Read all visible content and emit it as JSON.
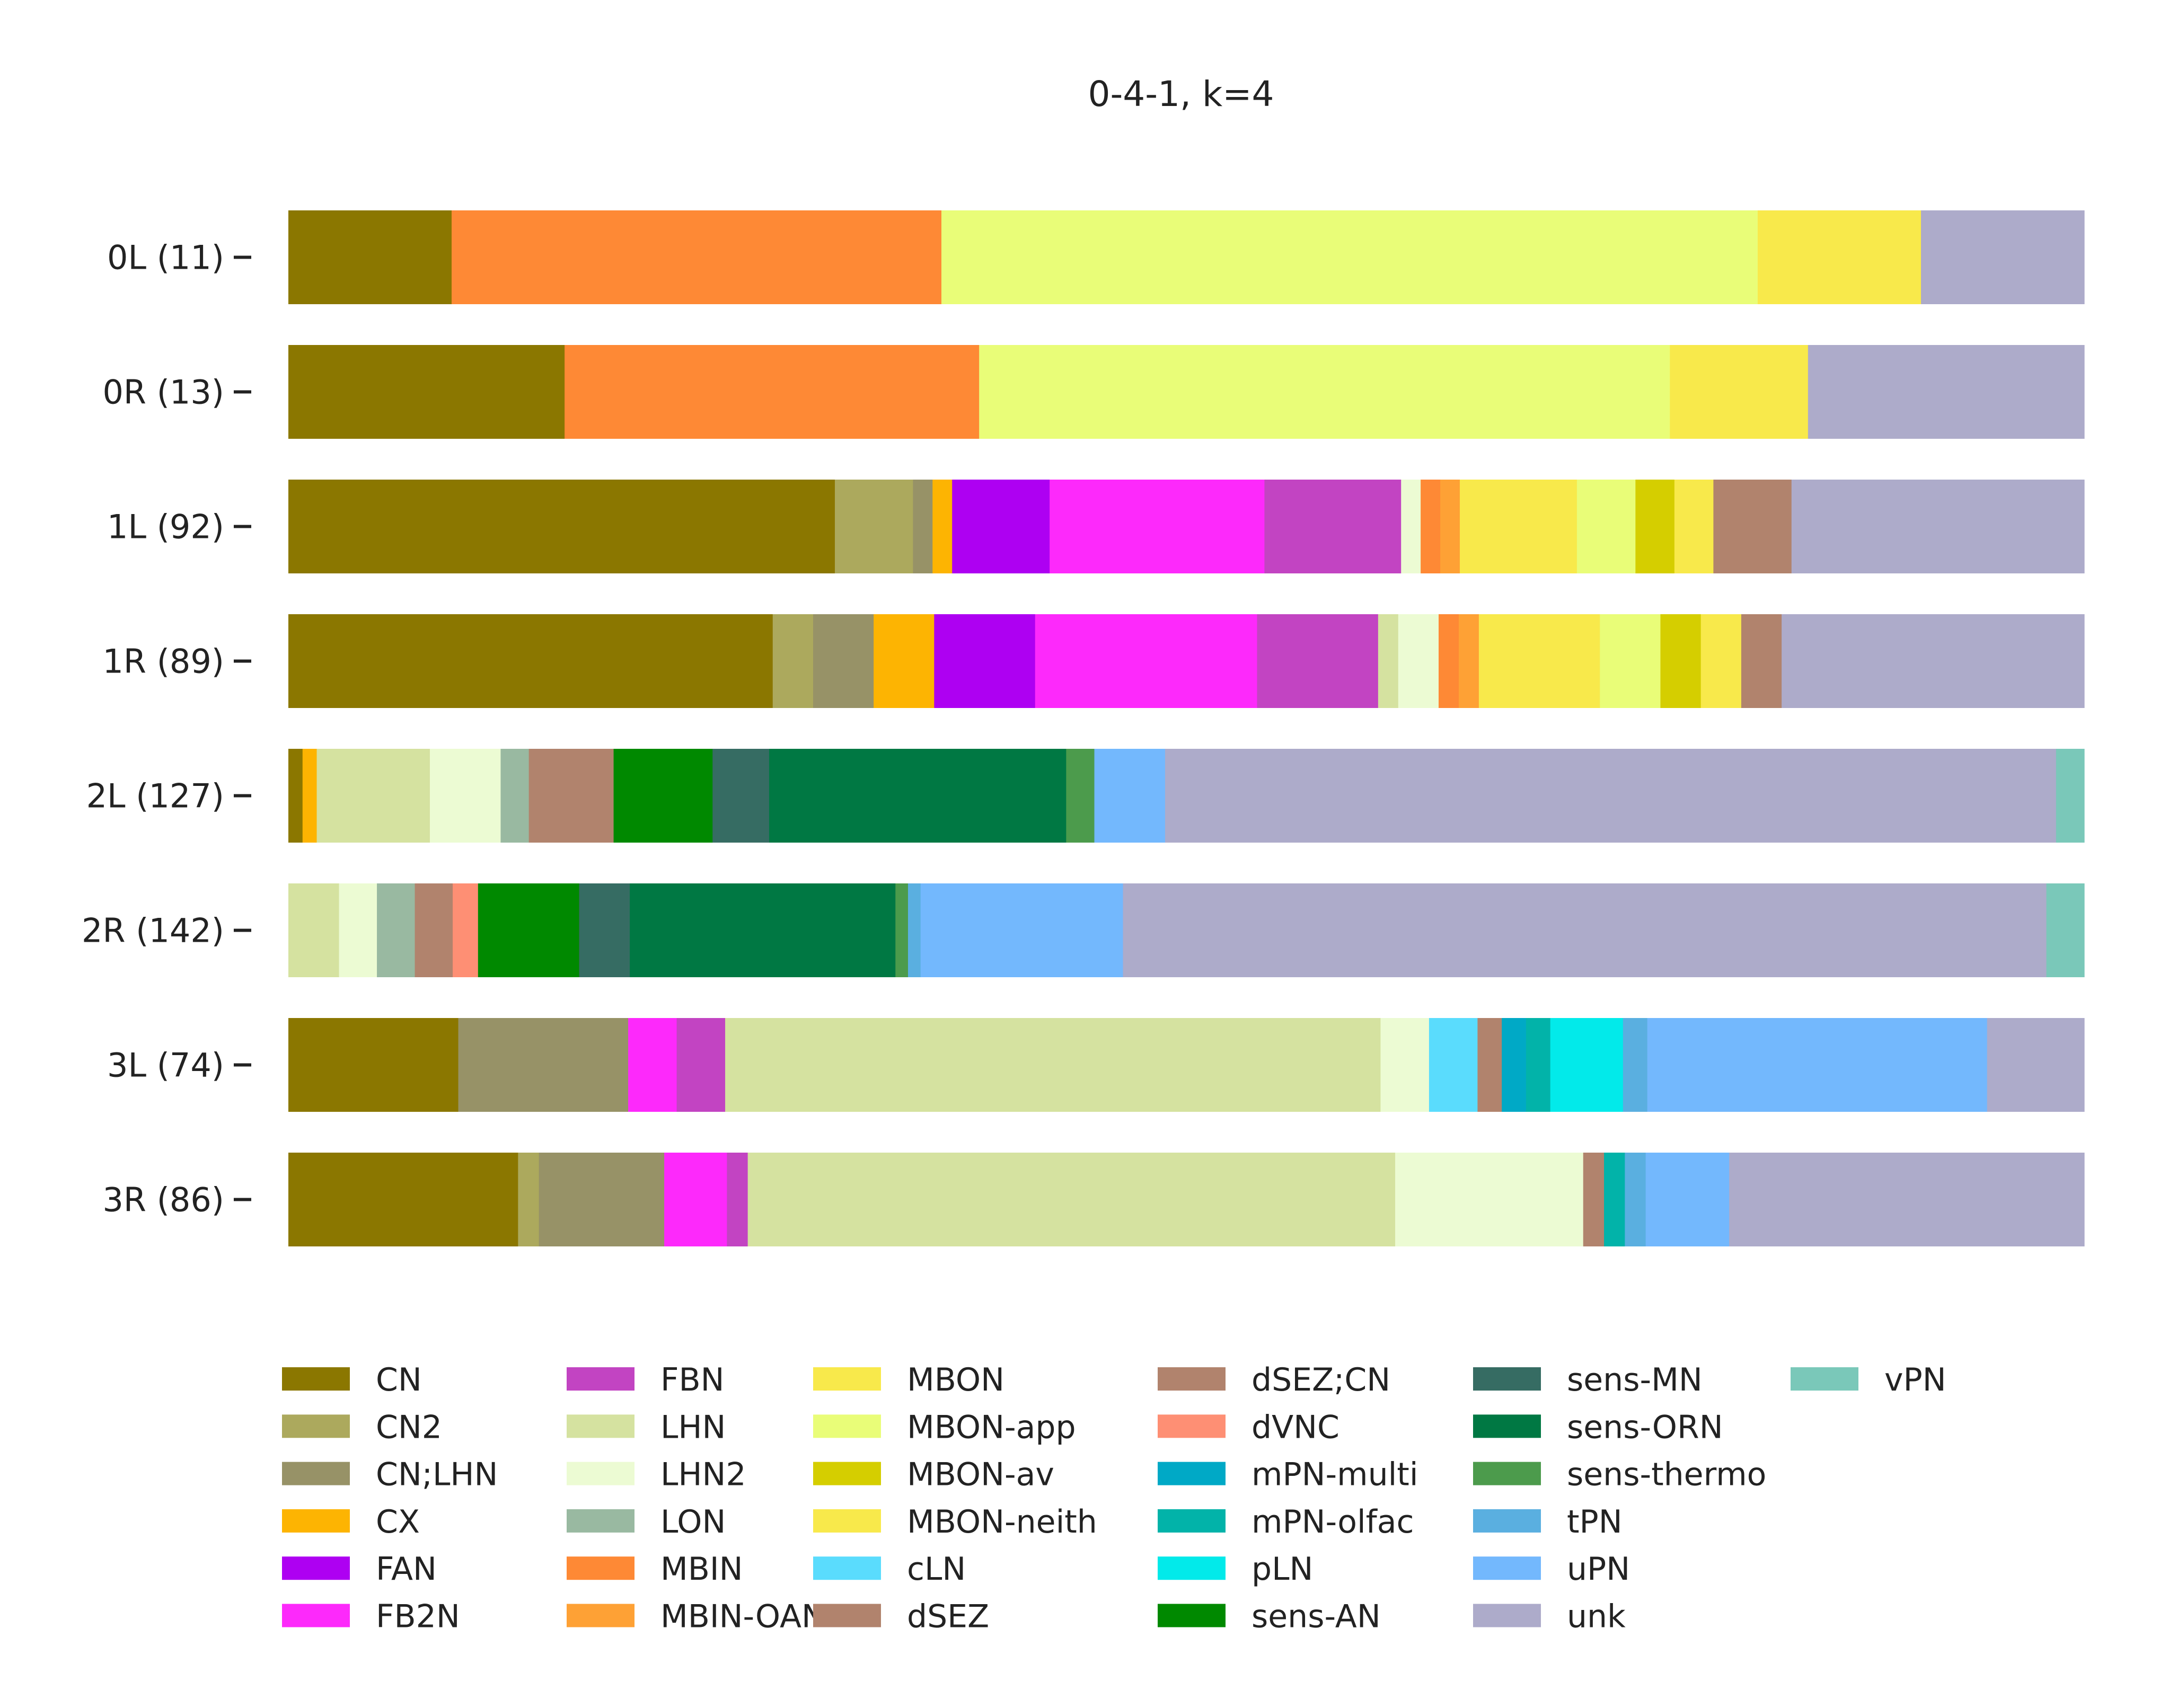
{
  "chart_data": {
    "type": "bar",
    "stacked": true,
    "orientation": "horizontal",
    "normalized": true,
    "title": "0-4-1, k=4",
    "xlim": [
      0,
      1
    ],
    "grid": false,
    "legend_position": "bottom",
    "categories": [
      "0L (11)",
      "0R (13)",
      "1L (92)",
      "1R (89)",
      "2L (127)",
      "2R (142)",
      "3L (74)",
      "3R (86)"
    ],
    "legend": [
      {
        "name": "CN",
        "color": "#8b7700"
      },
      {
        "name": "CN2",
        "color": "#aca95d"
      },
      {
        "name": "CN;LHN",
        "color": "#979267"
      },
      {
        "name": "CX",
        "color": "#fdb402"
      },
      {
        "name": "FAN",
        "color": "#ae00f2"
      },
      {
        "name": "FB2N",
        "color": "#fd29fb"
      },
      {
        "name": "FBN",
        "color": "#c244c2"
      },
      {
        "name": "LHN",
        "color": "#d5e2a0"
      },
      {
        "name": "LHN2",
        "color": "#ecfbd3"
      },
      {
        "name": "LON",
        "color": "#99b9a1"
      },
      {
        "name": "MBIN",
        "color": "#fe8935"
      },
      {
        "name": "MBIN-OAN",
        "color": "#fea135"
      },
      {
        "name": "MBON",
        "color": "#f8e94b"
      },
      {
        "name": "MBON-app",
        "color": "#e9fd78"
      },
      {
        "name": "MBON-av",
        "color": "#d5ce00"
      },
      {
        "name": "MBON-neith",
        "color": "#f8e94b"
      },
      {
        "name": "cLN",
        "color": "#5adcfd"
      },
      {
        "name": "dSEZ",
        "color": "#b1836d"
      },
      {
        "name": "dSEZ;CN",
        "color": "#b1836d"
      },
      {
        "name": "dVNC",
        "color": "#fe8f74"
      },
      {
        "name": "mPN-multi",
        "color": "#00a9c6"
      },
      {
        "name": "mPN-olfac",
        "color": "#02b3a9"
      },
      {
        "name": "pLN",
        "color": "#02eaea"
      },
      {
        "name": "sens-AN",
        "color": "#008900"
      },
      {
        "name": "sens-MN",
        "color": "#366c63"
      },
      {
        "name": "sens-ORN",
        "color": "#007843"
      },
      {
        "name": "sens-thermo",
        "color": "#4c9b4c"
      },
      {
        "name": "tPN",
        "color": "#5aafe0"
      },
      {
        "name": "uPN",
        "color": "#73b8fd"
      },
      {
        "name": "unk",
        "color": "#adabca"
      },
      {
        "name": "vPN",
        "color": "#7ac8b9"
      }
    ],
    "bars": [
      {
        "label": "0L (11)",
        "segments": [
          {
            "type": "CN",
            "value": 0.0909
          },
          {
            "type": "MBIN",
            "value": 0.2727
          },
          {
            "type": "MBON-app",
            "value": 0.4545
          },
          {
            "type": "MBON-neith",
            "value": 0.0909
          },
          {
            "type": "unk",
            "value": 0.0909
          }
        ]
      },
      {
        "label": "0R (13)",
        "segments": [
          {
            "type": "CN",
            "value": 0.1538
          },
          {
            "type": "MBIN",
            "value": 0.2308
          },
          {
            "type": "MBON-app",
            "value": 0.3846
          },
          {
            "type": "MBON-neith",
            "value": 0.0769
          },
          {
            "type": "unk",
            "value": 0.1538
          }
        ]
      },
      {
        "label": "1L (92)",
        "segments": [
          {
            "type": "CN",
            "value": 0.3043
          },
          {
            "type": "CN2",
            "value": 0.0435
          },
          {
            "type": "CN;LHN",
            "value": 0.0109
          },
          {
            "type": "CX",
            "value": 0.0109
          },
          {
            "type": "FAN",
            "value": 0.0543
          },
          {
            "type": "FB2N",
            "value": 0.1196
          },
          {
            "type": "FBN",
            "value": 0.0761
          },
          {
            "type": "LHN2",
            "value": 0.0109
          },
          {
            "type": "MBIN",
            "value": 0.0109
          },
          {
            "type": "MBIN-OAN",
            "value": 0.0109
          },
          {
            "type": "MBON",
            "value": 0.0652
          },
          {
            "type": "MBON-app",
            "value": 0.0326
          },
          {
            "type": "MBON-av",
            "value": 0.0217
          },
          {
            "type": "MBON-neith",
            "value": 0.0217
          },
          {
            "type": "dSEZ",
            "value": 0.0435
          },
          {
            "type": "unk",
            "value": 0.163
          }
        ]
      },
      {
        "label": "1R (89)",
        "segments": [
          {
            "type": "CN",
            "value": 0.2697
          },
          {
            "type": "CN2",
            "value": 0.0225
          },
          {
            "type": "CN;LHN",
            "value": 0.0337
          },
          {
            "type": "CX",
            "value": 0.0337
          },
          {
            "type": "FAN",
            "value": 0.0562
          },
          {
            "type": "FB2N",
            "value": 0.1236
          },
          {
            "type": "FBN",
            "value": 0.0674
          },
          {
            "type": "LHN",
            "value": 0.0112
          },
          {
            "type": "LHN2",
            "value": 0.0225
          },
          {
            "type": "MBIN",
            "value": 0.0112
          },
          {
            "type": "MBIN-OAN",
            "value": 0.0112
          },
          {
            "type": "MBON",
            "value": 0.0674
          },
          {
            "type": "MBON-app",
            "value": 0.0337
          },
          {
            "type": "MBON-av",
            "value": 0.0225
          },
          {
            "type": "MBON-neith",
            "value": 0.0225
          },
          {
            "type": "dSEZ",
            "value": 0.0225
          },
          {
            "type": "unk",
            "value": 0.1685
          }
        ]
      },
      {
        "label": "2L (127)",
        "segments": [
          {
            "type": "CN",
            "value": 0.0079
          },
          {
            "type": "CX",
            "value": 0.0079
          },
          {
            "type": "LHN",
            "value": 0.063
          },
          {
            "type": "LHN2",
            "value": 0.0394
          },
          {
            "type": "LON",
            "value": 0.0157
          },
          {
            "type": "dSEZ",
            "value": 0.0472
          },
          {
            "type": "sens-AN",
            "value": 0.0551
          },
          {
            "type": "sens-MN",
            "value": 0.0315
          },
          {
            "type": "sens-ORN",
            "value": 0.1654
          },
          {
            "type": "sens-thermo",
            "value": 0.0157
          },
          {
            "type": "uPN",
            "value": 0.0394
          },
          {
            "type": "unk",
            "value": 0.4961
          },
          {
            "type": "vPN",
            "value": 0.0157
          }
        ]
      },
      {
        "label": "2R (142)",
        "segments": [
          {
            "type": "LHN",
            "value": 0.0282
          },
          {
            "type": "LHN2",
            "value": 0.0211
          },
          {
            "type": "LON",
            "value": 0.0211
          },
          {
            "type": "dSEZ",
            "value": 0.0211
          },
          {
            "type": "dVNC",
            "value": 0.0141
          },
          {
            "type": "sens-AN",
            "value": 0.0563
          },
          {
            "type": "sens-MN",
            "value": 0.0282
          },
          {
            "type": "sens-ORN",
            "value": 0.1479
          },
          {
            "type": "sens-thermo",
            "value": 0.007
          },
          {
            "type": "tPN",
            "value": 0.007
          },
          {
            "type": "uPN",
            "value": 0.1127
          },
          {
            "type": "unk",
            "value": 0.5141
          },
          {
            "type": "vPN",
            "value": 0.0211
          }
        ]
      },
      {
        "label": "3L (74)",
        "segments": [
          {
            "type": "CN",
            "value": 0.0946
          },
          {
            "type": "CN;LHN",
            "value": 0.0946
          },
          {
            "type": "FB2N",
            "value": 0.027
          },
          {
            "type": "FBN",
            "value": 0.027
          },
          {
            "type": "LHN",
            "value": 0.3649
          },
          {
            "type": "LHN2",
            "value": 0.027
          },
          {
            "type": "cLN",
            "value": 0.027
          },
          {
            "type": "dSEZ",
            "value": 0.0135
          },
          {
            "type": "mPN-multi",
            "value": 0.0135
          },
          {
            "type": "mPN-olfac",
            "value": 0.0135
          },
          {
            "type": "pLN",
            "value": 0.0405
          },
          {
            "type": "tPN",
            "value": 0.0135
          },
          {
            "type": "uPN",
            "value": 0.1892
          },
          {
            "type": "unk",
            "value": 0.0541
          }
        ]
      },
      {
        "label": "3R (86)",
        "segments": [
          {
            "type": "CN",
            "value": 0.1279
          },
          {
            "type": "CN2",
            "value": 0.0116
          },
          {
            "type": "CN;LHN",
            "value": 0.0698
          },
          {
            "type": "FB2N",
            "value": 0.0349
          },
          {
            "type": "FBN",
            "value": 0.0116
          },
          {
            "type": "LHN",
            "value": 0.3605
          },
          {
            "type": "LHN2",
            "value": 0.1047
          },
          {
            "type": "dSEZ",
            "value": 0.0116
          },
          {
            "type": "mPN-olfac",
            "value": 0.0116
          },
          {
            "type": "tPN",
            "value": 0.0116
          },
          {
            "type": "uPN",
            "value": 0.0465
          },
          {
            "type": "unk",
            "value": 0.1977
          }
        ]
      }
    ]
  }
}
